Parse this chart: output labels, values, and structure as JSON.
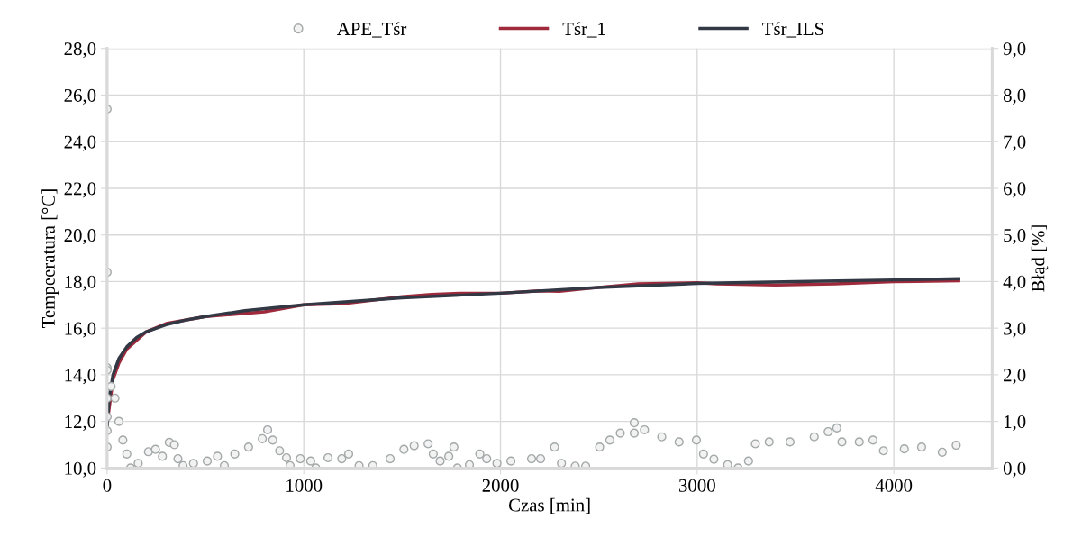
{
  "chart_data": {
    "type": "line",
    "xlabel": "Czas [min]",
    "ylabel": "Tempeeratura [°C]",
    "y2label": "Błąd [%]",
    "xlim": [
      0,
      4500
    ],
    "xticks": [
      0,
      1000,
      2000,
      3000,
      4000
    ],
    "ylim": [
      10,
      28
    ],
    "yticks": [
      {
        "value": 10,
        "label": "10,0"
      },
      {
        "value": 12,
        "label": "12,0"
      },
      {
        "value": 14,
        "label": "14,0"
      },
      {
        "value": 16,
        "label": "16,0"
      },
      {
        "value": 18,
        "label": "18,0"
      },
      {
        "value": 20,
        "label": "20,0"
      },
      {
        "value": 22,
        "label": "22,0"
      },
      {
        "value": 24,
        "label": "24,0"
      },
      {
        "value": 26,
        "label": "26,0"
      },
      {
        "value": 28,
        "label": "28,0"
      }
    ],
    "y2lim": [
      0,
      9
    ],
    "y2ticks": [
      {
        "value": 0,
        "label": "0,0"
      },
      {
        "value": 1,
        "label": "1,0"
      },
      {
        "value": 2,
        "label": "2,0"
      },
      {
        "value": 3,
        "label": "3,0"
      },
      {
        "value": 4,
        "label": "4,0"
      },
      {
        "value": 5,
        "label": "5,0"
      },
      {
        "value": 6,
        "label": "6,0"
      },
      {
        "value": 7,
        "label": "7,0"
      },
      {
        "value": 8,
        "label": "8,0"
      },
      {
        "value": 9,
        "label": "9,0"
      }
    ],
    "grid": true,
    "legend": "top",
    "series": [
      {
        "name": "APE_Tśr",
        "type": "scatter",
        "axis": "y2",
        "marker": "circle",
        "color": "#a3a8a8",
        "x": [
          0,
          0,
          0,
          0,
          0,
          0,
          0,
          0,
          20,
          40,
          60,
          80,
          100,
          119,
          158,
          210,
          246,
          281,
          316,
          342,
          360,
          386,
          439,
          509,
          561,
          596,
          649,
          719,
          789,
          816,
          842,
          877,
          912,
          930,
          982,
          1035,
          1061,
          1123,
          1193,
          1228,
          1281,
          1351,
          1439,
          1509,
          1561,
          1632,
          1658,
          1693,
          1737,
          1763,
          1781,
          1842,
          1895,
          1930,
          1982,
          2053,
          2158,
          2204,
          2275,
          2310,
          2380,
          2433,
          2504,
          2556,
          2609,
          2680,
          2680,
          2732,
          2820,
          2908,
          2996,
          3032,
          3085,
          3155,
          3208,
          3261,
          3296,
          3366,
          3472,
          3595,
          3666,
          3710,
          3736,
          3824,
          3894,
          3947,
          4053,
          4141,
          4246,
          4317
        ],
        "values": [
          7.7,
          4.2,
          2.15,
          2.1,
          1.5,
          1.1,
          0.8,
          0.45,
          1.75,
          1.5,
          1.0,
          0.6,
          0.3,
          0.0,
          0.1,
          0.35,
          0.4,
          0.25,
          0.55,
          0.5,
          0.2,
          0.05,
          0.1,
          0.15,
          0.25,
          0.05,
          0.3,
          0.45,
          0.63,
          0.82,
          0.6,
          0.37,
          0.22,
          0.05,
          0.2,
          0.15,
          0.0,
          0.22,
          0.2,
          0.3,
          0.05,
          0.05,
          0.2,
          0.4,
          0.48,
          0.52,
          0.3,
          0.15,
          0.25,
          0.45,
          0.0,
          0.07,
          0.3,
          0.2,
          0.1,
          0.15,
          0.2,
          0.2,
          0.45,
          0.1,
          0.04,
          0.04,
          0.45,
          0.6,
          0.75,
          0.97,
          0.75,
          0.82,
          0.67,
          0.56,
          0.6,
          0.3,
          0.19,
          0.07,
          0.0,
          0.15,
          0.52,
          0.56,
          0.56,
          0.67,
          0.78,
          0.86,
          0.56,
          0.56,
          0.6,
          0.37,
          0.41,
          0.45,
          0.34,
          0.49
        ]
      },
      {
        "name": "Tśr_1",
        "marker": "none",
        "line_style": "solid",
        "color": "#9e2a3b",
        "x": [
          0,
          30,
          60,
          100,
          200,
          300,
          500,
          800,
          1000,
          1200,
          1500,
          1650,
          1800,
          2000,
          2200,
          2300,
          2500,
          2700,
          3000,
          3100,
          3400,
          3700,
          4000,
          4330
        ],
        "values": [
          11.9,
          13.8,
          14.5,
          15.1,
          15.85,
          16.2,
          16.5,
          16.7,
          17.0,
          17.05,
          17.35,
          17.45,
          17.5,
          17.5,
          17.6,
          17.58,
          17.75,
          17.9,
          17.95,
          17.9,
          17.85,
          17.9,
          18.0,
          18.03
        ]
      },
      {
        "name": "Tśr_ILS",
        "marker": "none",
        "line_style": "solid",
        "color": "#333845",
        "x": [
          0,
          10,
          30,
          60,
          100,
          150,
          200,
          300,
          400,
          500,
          700,
          1000,
          1500,
          2000,
          2500,
          3000,
          3500,
          4000,
          4330
        ],
        "values": [
          11.7,
          13.0,
          14.0,
          14.7,
          15.2,
          15.6,
          15.85,
          16.15,
          16.35,
          16.5,
          16.75,
          17.0,
          17.3,
          17.5,
          17.75,
          17.92,
          18.0,
          18.07,
          18.12
        ]
      }
    ]
  }
}
